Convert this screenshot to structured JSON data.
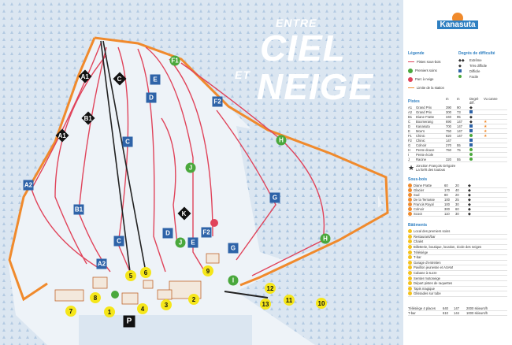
{
  "map": {
    "title_line1": "ENTRE",
    "title_line2": "CIEL",
    "title_et": "ET",
    "title_line3": "NEIGE",
    "trail_markers": [
      {
        "label": "A1",
        "level": "tres-difficile"
      },
      {
        "label": "A1",
        "level": "tres-difficile"
      },
      {
        "label": "B1",
        "level": "tres-difficile"
      },
      {
        "label": "A2",
        "level": "difficile"
      },
      {
        "label": "B1",
        "level": "difficile"
      },
      {
        "label": "A2",
        "level": "difficile"
      },
      {
        "label": "C",
        "level": "tres-difficile"
      },
      {
        "label": "C",
        "level": "difficile"
      },
      {
        "label": "C",
        "level": "difficile"
      },
      {
        "label": "E",
        "level": "difficile"
      },
      {
        "label": "D",
        "level": "difficile"
      },
      {
        "label": "E",
        "level": "difficile"
      },
      {
        "label": "F1",
        "level": "facile"
      },
      {
        "label": "F2",
        "level": "difficile"
      },
      {
        "label": "F2",
        "level": "difficile"
      },
      {
        "label": "H",
        "level": "facile"
      },
      {
        "label": "H",
        "level": "facile"
      },
      {
        "label": "G",
        "level": "difficile"
      },
      {
        "label": "G",
        "level": "difficile"
      },
      {
        "label": "J",
        "level": "facile"
      },
      {
        "label": "J",
        "level": "facile"
      },
      {
        "label": "D",
        "level": "difficile"
      },
      {
        "label": "K",
        "level": "tres-difficile"
      },
      {
        "label": "I",
        "level": "facile"
      }
    ],
    "buildings": [
      "1",
      "2",
      "3",
      "4",
      "5",
      "6",
      "7",
      "8",
      "9",
      "10",
      "11",
      "12",
      "13"
    ],
    "parking": "P",
    "lift_labels": [
      "Télésiège",
      "T-bar"
    ]
  },
  "legend": {
    "logo": "Kanasuta",
    "legend_title": "Légende",
    "legend_items": [
      "Pistes sous-bois",
      "Premiers soins",
      "Parc à neige",
      "Limite de la station"
    ],
    "difficulty_title": "Degrés de difficulté",
    "difficulty_items": [
      "Extrême",
      "Très difficile",
      "Difficile",
      "Facile"
    ],
    "pistes_title": "Pistes",
    "pistes_headers": [
      "m",
      "m",
      "Degré diff.",
      "Vu canne"
    ],
    "pistes": [
      {
        "id": "A1",
        "name": "Grand Prix",
        "len": "390",
        "drop": "90",
        "level": "tres-difficile",
        "star": false
      },
      {
        "id": "A2",
        "name": "Grand Prix",
        "len": "300",
        "drop": "73",
        "level": "difficile",
        "star": false
      },
      {
        "id": "B1",
        "name": "Diane Fratte",
        "len": "340",
        "drop": "95",
        "level": "tres-difficile",
        "star": false
      },
      {
        "id": "C",
        "name": "Boomerang",
        "len": "690",
        "drop": "147",
        "level": "tres-difficile",
        "star": true
      },
      {
        "id": "D",
        "name": "Kanasuta",
        "len": "700",
        "drop": "147",
        "level": "difficile",
        "star": true
      },
      {
        "id": "E",
        "name": "Moe's",
        "len": "750",
        "drop": "147",
        "level": "difficile",
        "star": true
      },
      {
        "id": "F1",
        "name": "Chinic",
        "len": "820",
        "drop": "147",
        "level": "facile",
        "star": true
      },
      {
        "id": "F2",
        "name": "Chinic",
        "len": "147",
        "drop": "",
        "level": "difficile",
        "star": false
      },
      {
        "id": "G",
        "name": "Colnoir",
        "len": "270",
        "drop": "55",
        "level": "difficile",
        "star": false
      },
      {
        "id": "H",
        "name": "Pente douce",
        "len": "750",
        "drop": "75",
        "level": "facile",
        "star": false
      },
      {
        "id": "I",
        "name": "Pente école",
        "len": "",
        "drop": "",
        "level": "facile",
        "star": false
      },
      {
        "id": "J",
        "name": "Racine",
        "len": "320",
        "drop": "55",
        "level": "facile",
        "star": false
      }
    ],
    "jonction": "Jonction François Grégoire",
    "jonction2": "La forêt des toutous",
    "sousbois_title": "Sous-bois",
    "sousbois": [
      {
        "n": "1",
        "name": "Diane Fratte",
        "len": "60",
        "drop": "20"
      },
      {
        "n": "2",
        "name": "Glacier",
        "len": "170",
        "drop": "40"
      },
      {
        "n": "3",
        "name": "Sud",
        "len": "80",
        "drop": "20"
      },
      {
        "n": "4",
        "name": "De la Terrasse",
        "len": "100",
        "drop": "25"
      },
      {
        "n": "5",
        "name": "Francis Royal",
        "len": "100",
        "drop": "30"
      },
      {
        "n": "6",
        "name": "Colnoir",
        "len": "300",
        "drop": "60"
      },
      {
        "n": "7",
        "name": "Scoot",
        "len": "110",
        "drop": "30"
      }
    ],
    "batiments_title": "Bâtiments",
    "batiments": [
      "Local des premiers soins",
      "Restaurant/bar",
      "Chalet",
      "Billetterie, boutique, location, école des neiges",
      "Télésiège",
      "T-bar",
      "Garage d'entretien",
      "Pavillon jeunesse et ASAM",
      "Cabane à sucre",
      "Sentier motoneige",
      "Départ pistes de raquettes",
      "Tapis magique",
      "Glissades sur tube"
    ],
    "lifts": [
      {
        "name": "Télésiège 4 places",
        "len": "640",
        "drop": "147",
        "cap": "2000 skieurs/h"
      },
      {
        "name": "T-bar",
        "len": "610",
        "drop": "144",
        "cap": "1000 skieurs/h"
      }
    ]
  },
  "colors": {
    "boundary": "#f08a2c",
    "trail": "#e0435a",
    "difficile": "#2e63a8",
    "facile": "#4aa83c",
    "accent": "#2e7fc1"
  }
}
